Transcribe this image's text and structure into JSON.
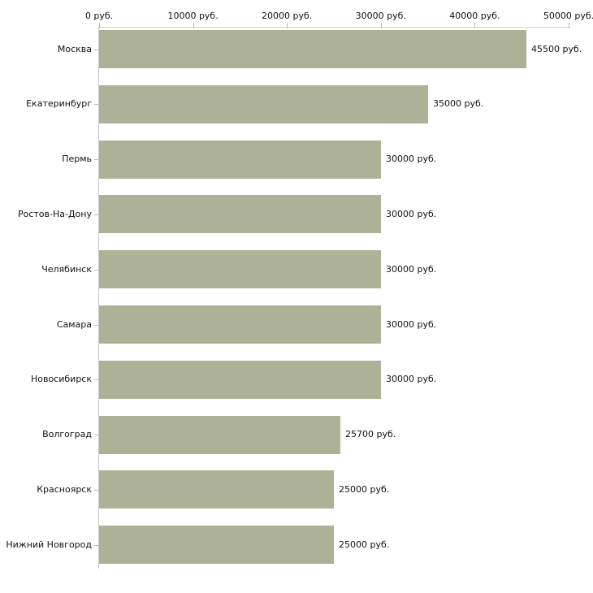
{
  "chart_data": {
    "type": "bar",
    "orientation": "horizontal",
    "categories": [
      "Москва",
      "Екатеринбург",
      "Пермь",
      "Ростов-На-Дону",
      "Челябинск",
      "Самара",
      "Новосибирск",
      "Волгоград",
      "Красноярск",
      "Нижний Новгород"
    ],
    "values": [
      45500,
      35000,
      30000,
      30000,
      30000,
      30000,
      30000,
      25700,
      25000,
      25000
    ],
    "value_labels": [
      "45500 руб.",
      "35000 руб.",
      "30000 руб.",
      "30000 руб.",
      "30000 руб.",
      "30000 руб.",
      "30000 руб.",
      "25700 руб.",
      "25000 руб.",
      "25000 руб."
    ],
    "unit": "руб.",
    "x_ticks": [
      0,
      10000,
      20000,
      30000,
      40000,
      50000
    ],
    "x_tick_labels": [
      "0 руб.",
      "10000 руб.",
      "20000 руб.",
      "30000 руб.",
      "40000 руб.",
      "50000 руб."
    ],
    "xlim": [
      0,
      50000
    ],
    "grid": false,
    "legend_position": "none",
    "colors": {
      "bar": "#adb296",
      "x_axis_line": "#d6d3b0",
      "tick_mark": "#c2bf98",
      "y_axis_line": "#c9c9c9",
      "label_text": "#111111",
      "background": "#ffffff"
    }
  }
}
